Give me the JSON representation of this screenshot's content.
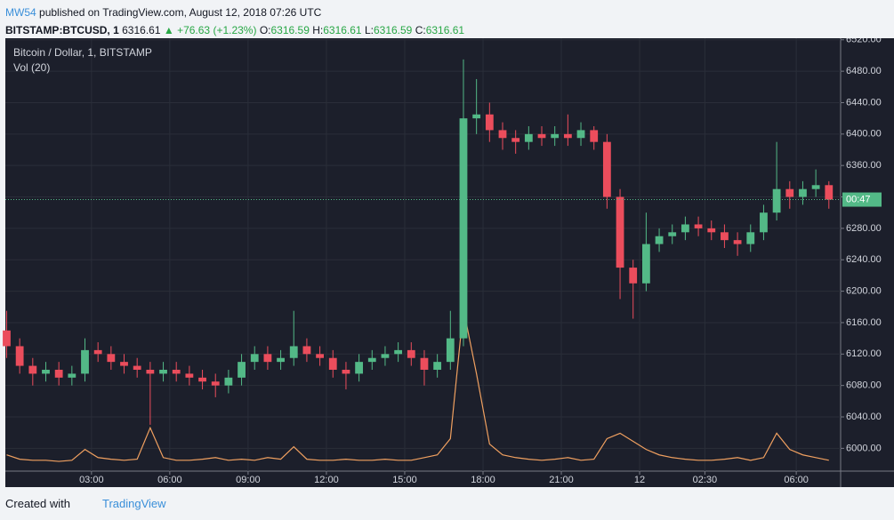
{
  "header": {
    "author": "MW54",
    "published": "published on TradingView.com, August 12, 2018 07:26 UTC",
    "symbol": "BITSTAMP:BTCUSD, 1",
    "last": "6316.61",
    "change": "▲ +76.63 (+1.23%)",
    "o_label": "O:",
    "o": "6316.59",
    "h_label": "H:",
    "h": "6316.61",
    "l_label": "L:",
    "l": "6316.59",
    "c_label": "C:",
    "c": "6316.61"
  },
  "footer": {
    "created": "Created with",
    "brand": "TradingView"
  },
  "chart_data": {
    "type": "candlestick",
    "legend_title": "Bitcoin / Dollar, 1, BITSTAMP",
    "volume_label": "Vol (20)",
    "countdown_label": "00:47",
    "up_color": "#53b987",
    "down_color": "#eb4d5c",
    "volume_color": "#f0a060",
    "grid": true,
    "x": [
      -0.25,
      0.25,
      0.75,
      1.25,
      1.75,
      2.25,
      2.75,
      3.25,
      3.75,
      4.25,
      4.75,
      5.25,
      5.75,
      6.25,
      6.75,
      7.25,
      7.75,
      8.25,
      8.75,
      9.25,
      9.75,
      10.25,
      10.75,
      11.25,
      11.75,
      12.25,
      12.75,
      13.25,
      13.75,
      14.25,
      14.75,
      15.25,
      15.75,
      16.25,
      16.75,
      17.25,
      17.75,
      18.25,
      18.75,
      19.25,
      19.75,
      20.25,
      20.75,
      21.25,
      21.75,
      22.25,
      22.75,
      23.25,
      23.75,
      24.25,
      24.75,
      25.25,
      25.75,
      26.25,
      26.75,
      27.25,
      27.75,
      28.25,
      28.75,
      29.25,
      29.75,
      30.25,
      30.75,
      31.25
    ],
    "open": [
      6150,
      6130,
      6105,
      6095,
      6100,
      6090,
      6095,
      6125,
      6120,
      6110,
      6105,
      6100,
      6095,
      6100,
      6095,
      6090,
      6085,
      6080,
      6090,
      6110,
      6120,
      6110,
      6115,
      6130,
      6120,
      6115,
      6100,
      6095,
      6110,
      6115,
      6120,
      6125,
      6115,
      6100,
      6110,
      6140,
      6420,
      6425,
      6405,
      6395,
      6390,
      6400,
      6395,
      6400,
      6395,
      6405,
      6390,
      6320,
      6230,
      6210,
      6260,
      6270,
      6275,
      6285,
      6280,
      6275,
      6265,
      6260,
      6275,
      6300,
      6330,
      6320,
      6330,
      6335
    ],
    "high": [
      6175,
      6140,
      6115,
      6110,
      6110,
      6105,
      6140,
      6135,
      6130,
      6120,
      6115,
      6110,
      6110,
      6110,
      6105,
      6100,
      6095,
      6100,
      6120,
      6130,
      6130,
      6125,
      6175,
      6140,
      6130,
      6125,
      6110,
      6120,
      6125,
      6130,
      6135,
      6135,
      6125,
      6120,
      6175,
      6495,
      6470,
      6440,
      6415,
      6405,
      6410,
      6410,
      6410,
      6425,
      6415,
      6410,
      6400,
      6330,
      6240,
      6300,
      6280,
      6285,
      6295,
      6295,
      6290,
      6285,
      6275,
      6285,
      6310,
      6390,
      6340,
      6340,
      6355,
      6340
    ],
    "low": [
      6115,
      6095,
      6080,
      6085,
      6080,
      6080,
      6085,
      6110,
      6100,
      6095,
      6090,
      6030,
      6085,
      6085,
      6080,
      6075,
      6065,
      6070,
      6080,
      6100,
      6100,
      6100,
      6105,
      6110,
      6105,
      6090,
      6075,
      6085,
      6100,
      6105,
      6110,
      6105,
      6080,
      6090,
      6100,
      6130,
      6400,
      6390,
      6380,
      6375,
      6380,
      6385,
      6385,
      6385,
      6385,
      6380,
      6305,
      6190,
      6165,
      6200,
      6250,
      6260,
      6265,
      6270,
      6265,
      6255,
      6245,
      6250,
      6265,
      6290,
      6305,
      6310,
      6320,
      6305
    ],
    "close": [
      6130,
      6105,
      6095,
      6100,
      6090,
      6095,
      6125,
      6120,
      6110,
      6105,
      6100,
      6095,
      6100,
      6095,
      6090,
      6085,
      6080,
      6090,
      6110,
      6120,
      6110,
      6115,
      6130,
      6120,
      6115,
      6100,
      6095,
      6110,
      6115,
      6120,
      6125,
      6115,
      6100,
      6110,
      6140,
      6420,
      6425,
      6405,
      6395,
      6390,
      6400,
      6395,
      6400,
      6395,
      6405,
      6390,
      6320,
      6230,
      6210,
      6260,
      6270,
      6275,
      6285,
      6280,
      6275,
      6265,
      6260,
      6275,
      6300,
      6330,
      6320,
      6330,
      6335,
      6316.61
    ],
    "volume": [
      30,
      22,
      20,
      20,
      18,
      20,
      40,
      25,
      22,
      20,
      22,
      80,
      25,
      20,
      20,
      22,
      25,
      20,
      22,
      20,
      25,
      22,
      45,
      22,
      20,
      20,
      22,
      20,
      20,
      22,
      20,
      20,
      25,
      30,
      60,
      300,
      180,
      50,
      30,
      25,
      22,
      20,
      22,
      25,
      20,
      22,
      60,
      70,
      55,
      40,
      30,
      25,
      22,
      20,
      20,
      22,
      25,
      20,
      25,
      70,
      40,
      30,
      25,
      20
    ],
    "y2lim": [
      0,
      800
    ],
    "xlim": [
      -0.3,
      31.7
    ],
    "xticks": [
      {
        "value": 3,
        "label": "03:00"
      },
      {
        "value": 6,
        "label": "06:00"
      },
      {
        "value": 9,
        "label": "09:00"
      },
      {
        "value": 12,
        "label": "12:00"
      },
      {
        "value": 15,
        "label": "15:00"
      },
      {
        "value": 18,
        "label": "18:00"
      },
      {
        "value": 21,
        "label": "21:00"
      },
      {
        "value": 24,
        "label": "12"
      },
      {
        "value": 26.5,
        "label": "02:30"
      },
      {
        "value": 30,
        "label": "06:00"
      }
    ],
    "ylim": [
      5971,
      6522
    ],
    "yticks": [
      {
        "value": 6000,
        "label": "6000.00"
      },
      {
        "value": 6040,
        "label": "6040.00"
      },
      {
        "value": 6080,
        "label": "6080.00"
      },
      {
        "value": 6120,
        "label": "6120.00"
      },
      {
        "value": 6160,
        "label": "6160.00"
      },
      {
        "value": 6200,
        "label": "6200.00"
      },
      {
        "value": 6240,
        "label": "6240.00"
      },
      {
        "value": 6280,
        "label": "6280.00"
      },
      {
        "value": 6320,
        "label": "6320.00"
      },
      {
        "value": 6360,
        "label": "6360.00"
      },
      {
        "value": 6400,
        "label": "6400.00"
      },
      {
        "value": 6440,
        "label": "6440.00"
      },
      {
        "value": 6480,
        "label": "6480.00"
      },
      {
        "value": 6520,
        "label": "6520.00"
      }
    ]
  }
}
